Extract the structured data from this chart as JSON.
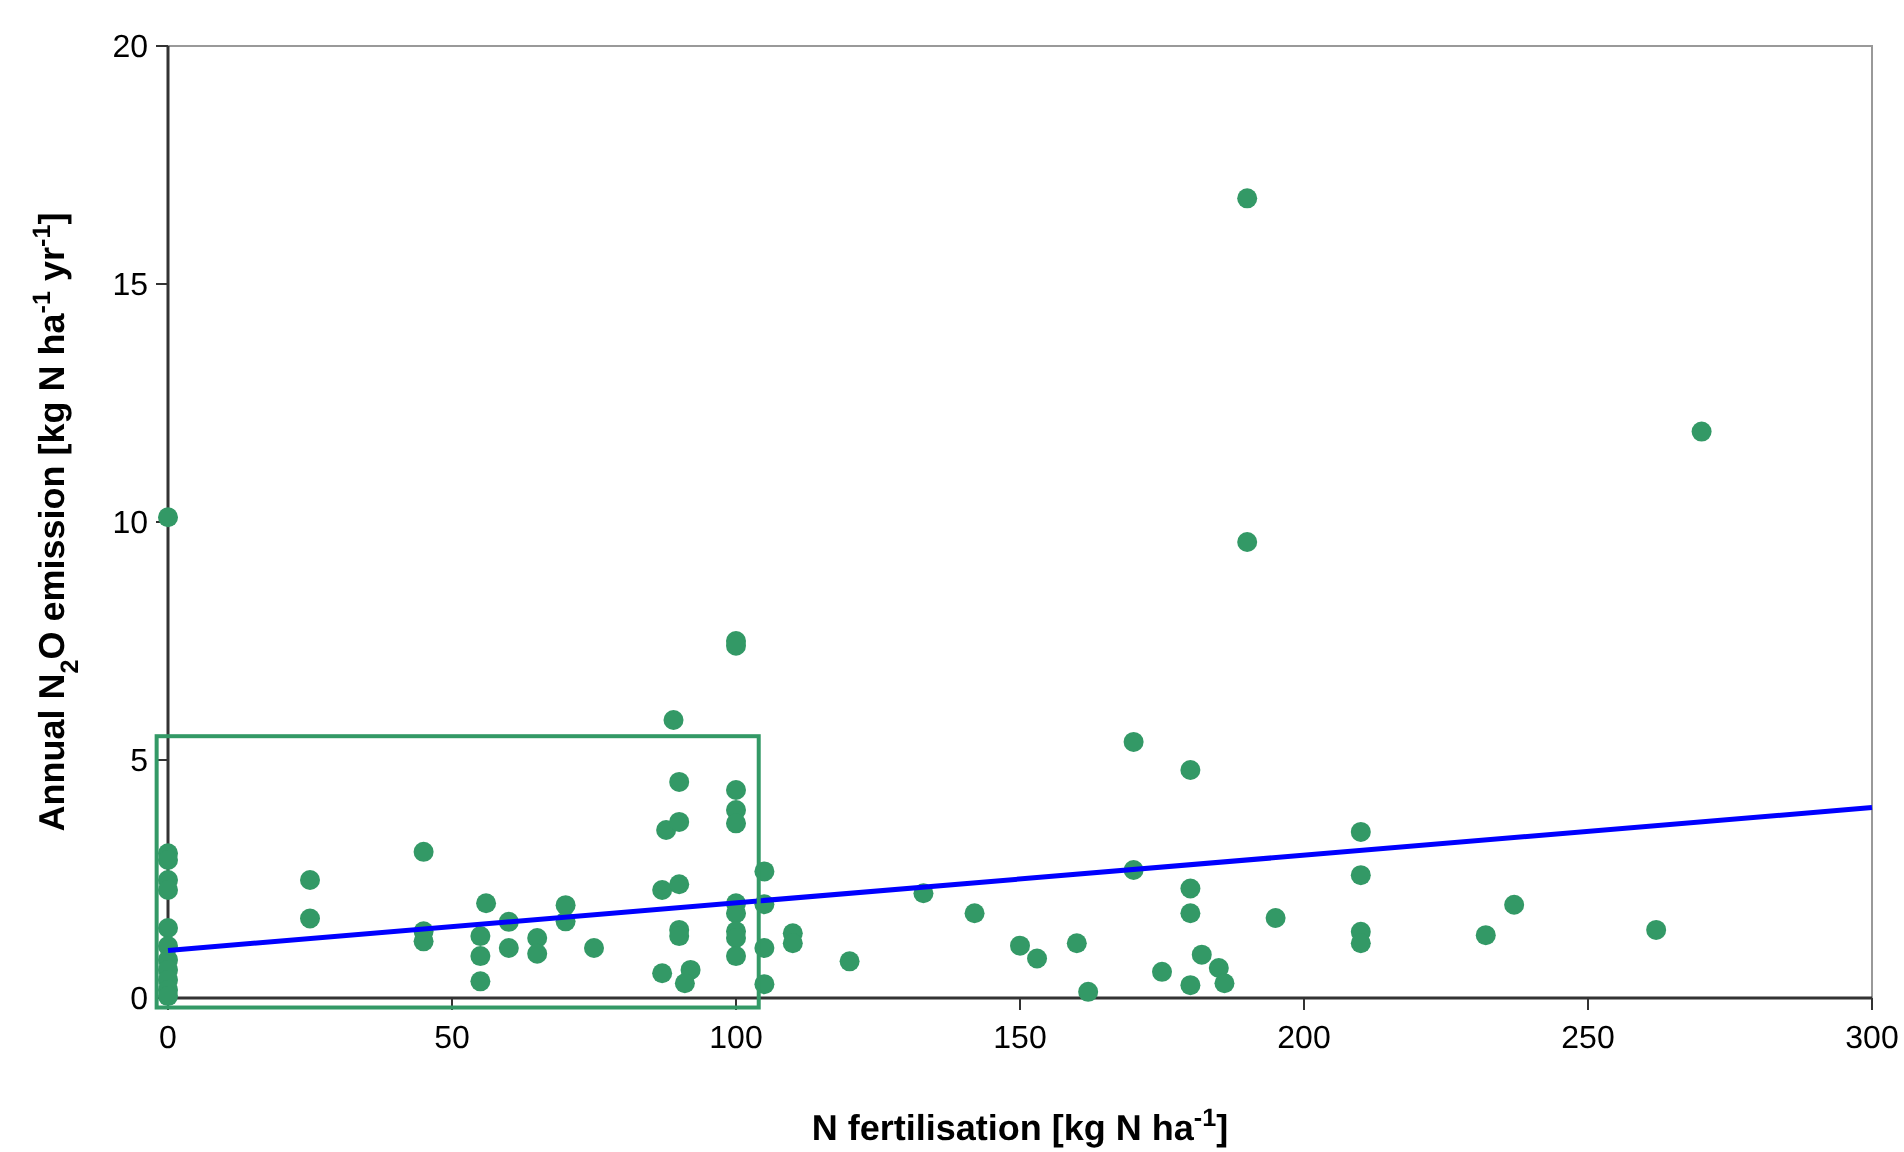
{
  "chart_data": {
    "type": "scatter",
    "xlabel": "N fertilisation [kg N ha$^{-1}$]",
    "ylabel": "Annual N$_{2}$O emission [kg N ha$^{-1}$ yr$^{-1}$]",
    "xlim": [
      0,
      300
    ],
    "xticks": [
      0,
      50,
      100,
      150,
      200,
      250,
      300
    ],
    "ylim": [
      0,
      20
    ],
    "yticks": [
      0,
      5,
      10,
      15,
      20
    ],
    "grid": false,
    "marker": "circle",
    "series": [
      {
        "color": "#339966",
        "x": [
          0,
          0,
          0,
          0,
          0,
          0,
          0,
          0,
          0,
          0,
          0,
          0,
          25,
          25,
          45,
          45,
          45,
          55,
          55,
          55,
          56,
          60,
          60,
          65,
          65,
          70,
          70,
          75,
          87,
          87,
          87.7,
          89,
          90,
          90,
          90,
          90,
          90,
          92,
          91,
          100,
          100,
          100,
          100,
          100,
          100,
          100,
          100,
          100,
          100,
          105,
          105,
          105,
          105,
          110,
          110,
          120,
          133,
          142,
          150,
          153,
          160,
          162,
          170,
          170,
          175,
          180,
          180,
          180,
          180,
          182,
          185,
          186,
          190,
          190,
          195,
          210,
          210,
          210,
          210,
          232,
          237,
          262,
          270
        ],
        "values": [
          10.1,
          3.04,
          2.9,
          2.48,
          2.27,
          1.47,
          1.09,
          0.8,
          0.59,
          0.38,
          0.17,
          0.04,
          2.48,
          1.67,
          3.07,
          1.4,
          1.19,
          1.3,
          0.88,
          0.35,
          1.99,
          1.6,
          1.05,
          1.26,
          0.93,
          1.95,
          1.61,
          1.05,
          2.27,
          0.52,
          3.53,
          5.84,
          4.54,
          3.7,
          2.39,
          1.43,
          1.3,
          0.59,
          0.31,
          7.5,
          7.4,
          4.37,
          3.95,
          3.67,
          1.99,
          1.78,
          1.4,
          1.26,
          0.88,
          2.66,
          1.97,
          1.05,
          0.29,
          1.36,
          1.15,
          0.77,
          2.2,
          1.78,
          1.1,
          0.83,
          1.15,
          0.13,
          5.38,
          2.69,
          0.55,
          4.79,
          2.3,
          1.78,
          0.27,
          0.91,
          0.63,
          0.31,
          16.8,
          9.58,
          1.68,
          3.49,
          2.58,
          1.39,
          1.15,
          1.32,
          1.96,
          1.43,
          11.9
        ]
      },
      {
        "type": "line",
        "color": "#0000ff",
        "line_style": "solid",
        "marker": "none",
        "x": [
          0,
          300
        ],
        "values": [
          1,
          4
        ]
      }
    ]
  }
}
